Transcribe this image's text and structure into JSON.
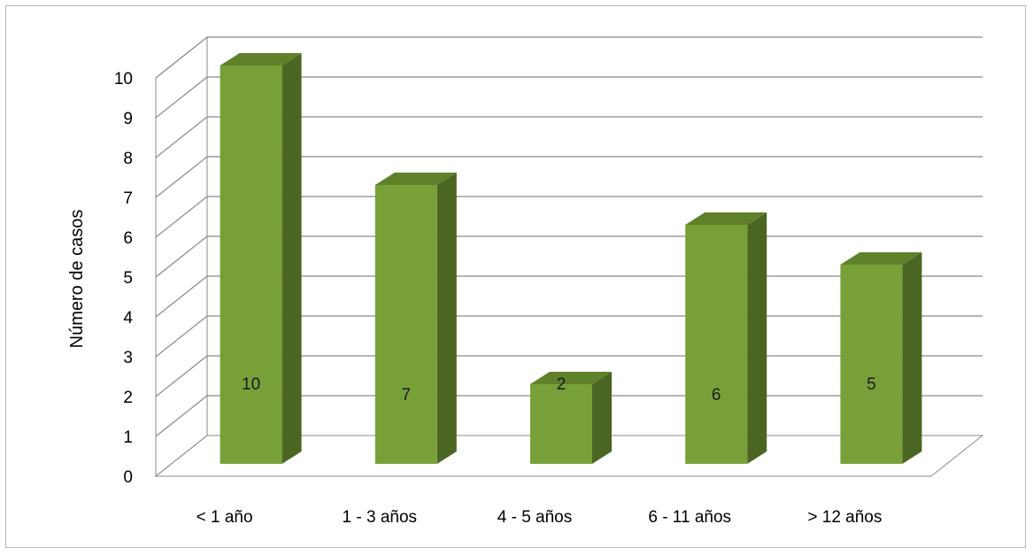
{
  "chart_data": {
    "type": "bar",
    "title": "",
    "xlabel": "",
    "ylabel": "Número de casos",
    "categories": [
      "< 1 año",
      "1 - 3 años",
      "4 - 5 años",
      "6 - 11 años",
      "> 12 años"
    ],
    "values": [
      10,
      7,
      2,
      6,
      5
    ],
    "data_labels": [
      "10",
      "7",
      "2",
      "6",
      "5"
    ],
    "ylim": [
      0,
      10
    ],
    "yticks": [
      0,
      1,
      2,
      3,
      4,
      5,
      6,
      7,
      8,
      9,
      10
    ],
    "grid": true,
    "legend": "none",
    "style": "3d-column",
    "colors": {
      "bar_front": "#77a038",
      "bar_side": "#4b6623",
      "bar_top": "#5e8129",
      "gridline": "#8a8a8a"
    }
  }
}
